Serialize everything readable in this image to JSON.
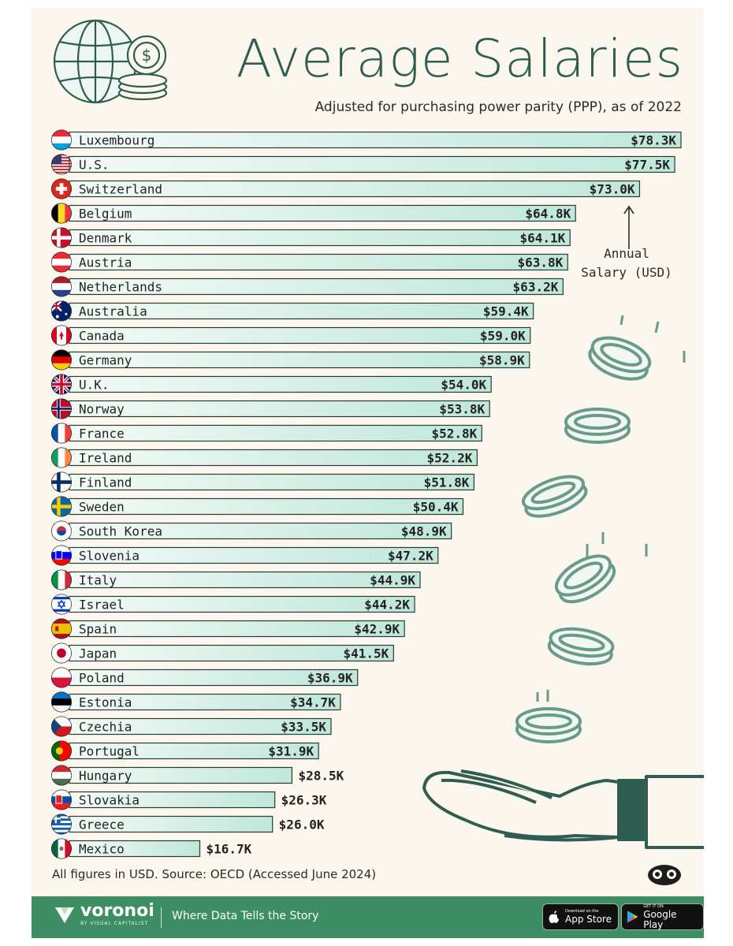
{
  "header": {
    "title": "Average Salaries",
    "subtitle": "Adjusted for purchasing power parity (PPP), as of 2022"
  },
  "annotation": {
    "line1": "Annual",
    "line2": "Salary (USD)"
  },
  "chart_data": {
    "type": "bar",
    "orientation": "horizontal",
    "title": "Average Salaries",
    "subtitle": "Adjusted for purchasing power parity (PPP), as of 2022",
    "unit": "USD thousands",
    "categories": [
      "Luxembourg",
      "U.S.",
      "Switzerland",
      "Belgium",
      "Denmark",
      "Austria",
      "Netherlands",
      "Australia",
      "Canada",
      "Germany",
      "U.K.",
      "Norway",
      "France",
      "Ireland",
      "Finland",
      "Sweden",
      "South Korea",
      "Slovenia",
      "Italy",
      "Israel",
      "Spain",
      "Japan",
      "Poland",
      "Estonia",
      "Czechia",
      "Portugal",
      "Hungary",
      "Slovakia",
      "Greece",
      "Mexico"
    ],
    "values": [
      78.3,
      77.5,
      73.0,
      64.8,
      64.1,
      63.8,
      63.2,
      59.4,
      59.0,
      58.9,
      54.0,
      53.8,
      52.8,
      52.2,
      51.8,
      50.4,
      48.9,
      47.2,
      44.9,
      44.2,
      42.9,
      41.5,
      36.9,
      34.7,
      33.5,
      31.9,
      28.5,
      26.3,
      26.0,
      16.7
    ],
    "labels": [
      "$78.3K",
      "$77.5K",
      "$73.0K",
      "$64.8K",
      "$64.1K",
      "$63.8K",
      "$63.2K",
      "$59.4K",
      "$59.0K",
      "$58.9K",
      "$54.0K",
      "$53.8K",
      "$52.8K",
      "$52.2K",
      "$51.8K",
      "$50.4K",
      "$48.9K",
      "$47.2K",
      "$44.9K",
      "$44.2K",
      "$42.9K",
      "$41.5K",
      "$36.9K",
      "$34.7K",
      "$33.5K",
      "$31.9K",
      "$28.5K",
      "$26.3K",
      "$26.0K",
      "$16.7K"
    ],
    "colors": {
      "bar_left": "#f3faf6",
      "bar_right": "#bfe7da",
      "bar_stroke": "#2b3a35",
      "text": "#222222"
    }
  },
  "footer": {
    "note": "All figures in USD. Source: OECD (Accessed June 2024)",
    "brand": "voronoi",
    "brand_by": "BY VISUAL CAPITALIST",
    "tagline": "Where Data Tells the Story",
    "app_store_small": "Download on the",
    "app_store_big": "App Store",
    "google_small": "GET IT ON",
    "google_big": "Google Play"
  },
  "colors": {
    "title": "#2f5d4f",
    "footer_bg": "#3d8f63",
    "page_bg": "#fbf6ee"
  }
}
